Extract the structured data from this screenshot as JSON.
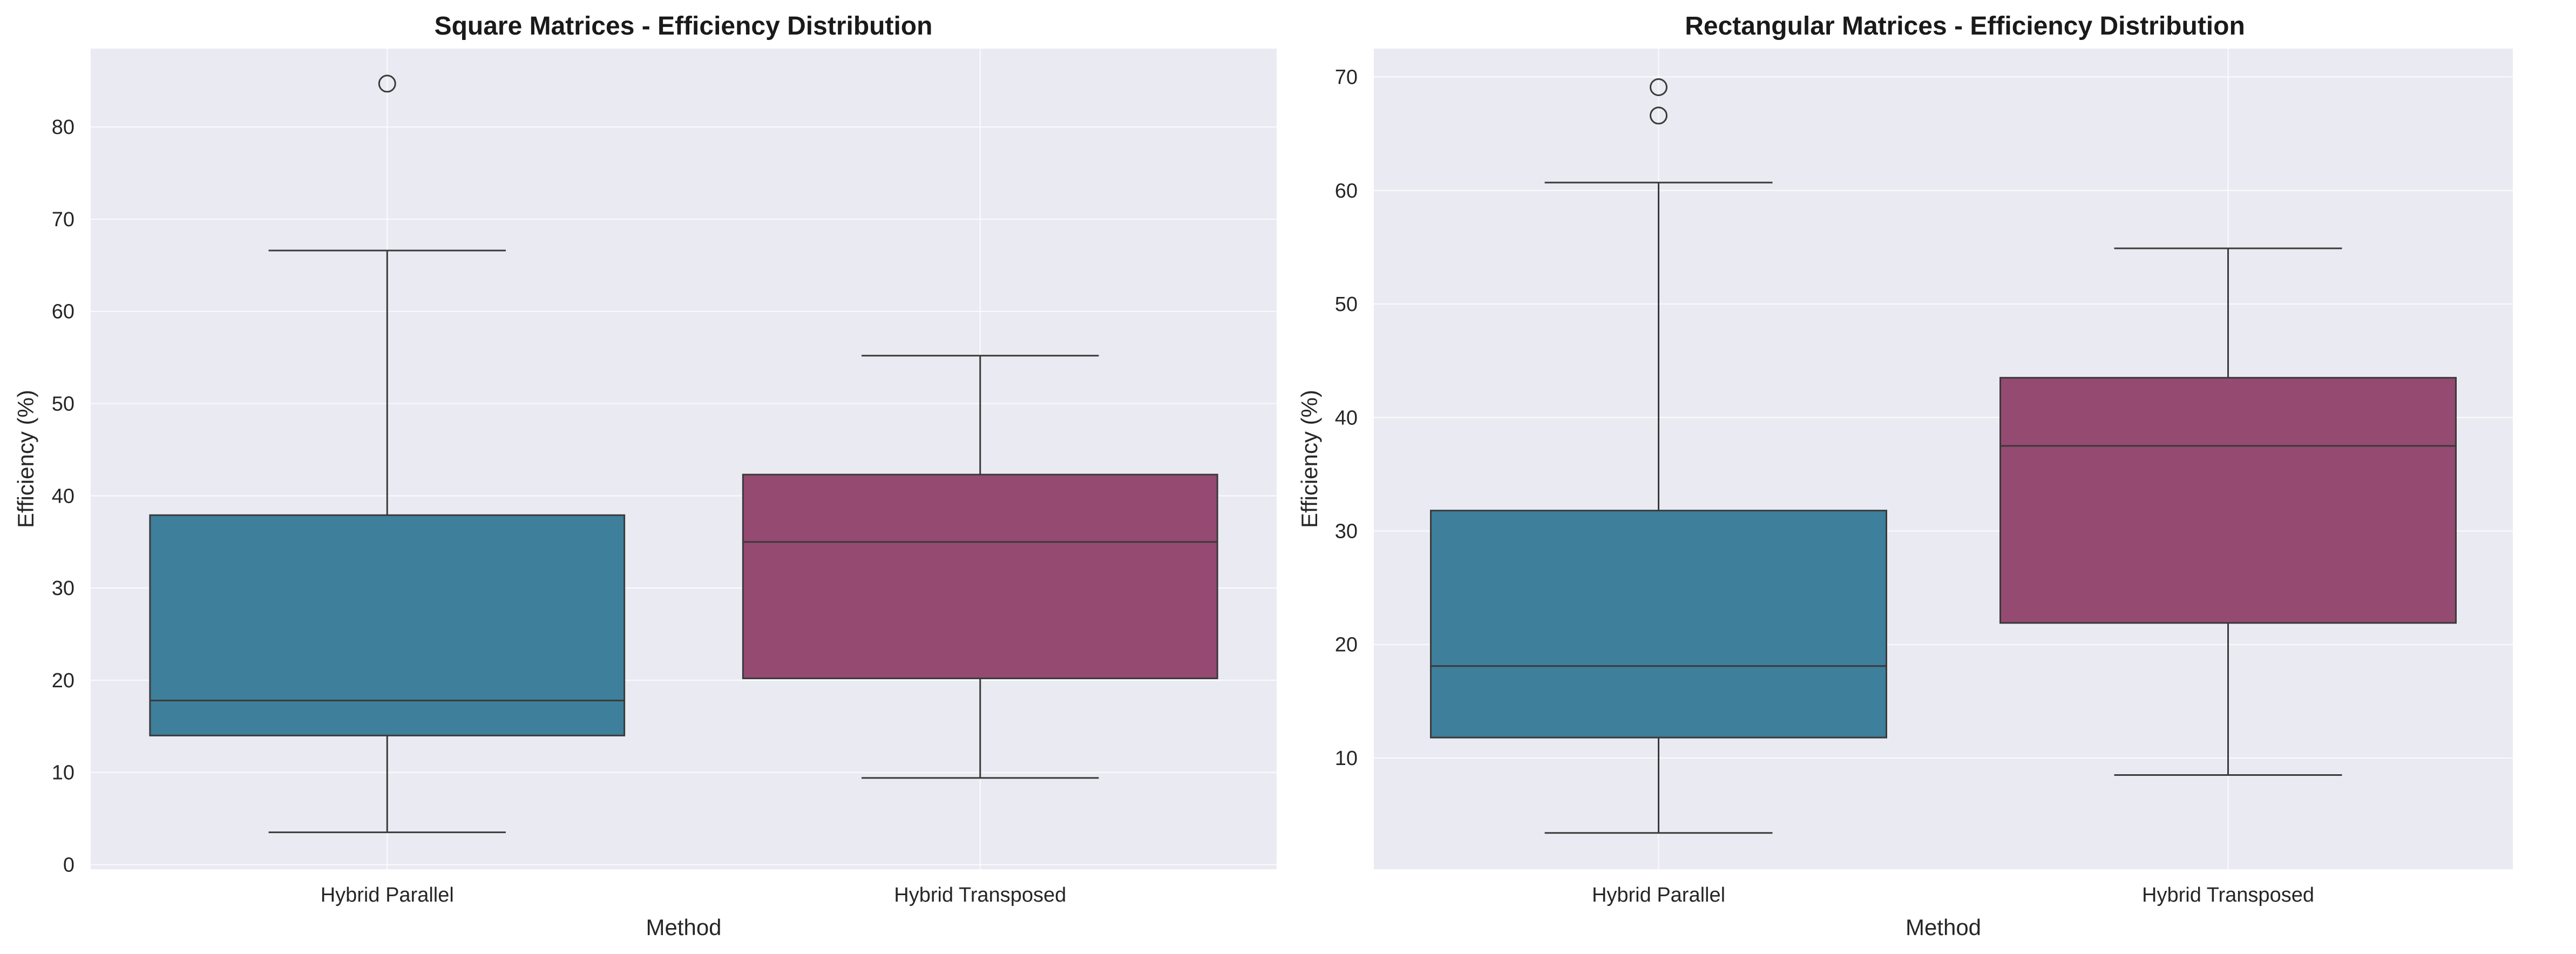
{
  "colors": {
    "axes_bg": "#EAEAF2",
    "grid": "#FFFFFF",
    "line": "#3A3A3A",
    "hybrid_parallel": "#3E7F9C",
    "hybrid_transposed": "#954A72"
  },
  "chart_data": [
    {
      "type": "box",
      "title": "Square Matrices - Efficiency Distribution",
      "xlabel": "Method",
      "ylabel": "Efficiency (%)",
      "ylim": [
        -0.5,
        88.5
      ],
      "yticks": [
        0,
        10,
        20,
        30,
        40,
        50,
        60,
        70,
        80
      ],
      "grid": true,
      "categories": [
        "Hybrid Parallel",
        "Hybrid Transposed"
      ],
      "boxes": [
        {
          "category": "Hybrid Parallel",
          "whisker_low": 3.5,
          "q1": 14.0,
          "median": 17.8,
          "q3": 37.9,
          "whisker_high": 66.6,
          "outliers": [
            84.7
          ]
        },
        {
          "category": "Hybrid Transposed",
          "whisker_low": 9.4,
          "q1": 20.2,
          "median": 35.0,
          "q3": 42.3,
          "whisker_high": 55.2,
          "outliers": []
        }
      ]
    },
    {
      "type": "box",
      "title": "Rectangular Matrices - Efficiency Distribution",
      "xlabel": "Method",
      "ylabel": "Efficiency (%)",
      "ylim": [
        0.2,
        72.5
      ],
      "yticks": [
        10,
        20,
        30,
        40,
        50,
        60,
        70
      ],
      "grid": true,
      "categories": [
        "Hybrid Parallel",
        "Hybrid Transposed"
      ],
      "boxes": [
        {
          "category": "Hybrid Parallel",
          "whisker_low": 3.4,
          "q1": 11.8,
          "median": 18.1,
          "q3": 31.8,
          "whisker_high": 60.7,
          "outliers": [
            66.6,
            69.1
          ]
        },
        {
          "category": "Hybrid Transposed",
          "whisker_low": 8.5,
          "q1": 21.9,
          "median": 37.5,
          "q3": 43.5,
          "whisker_high": 54.9,
          "outliers": []
        }
      ]
    }
  ]
}
